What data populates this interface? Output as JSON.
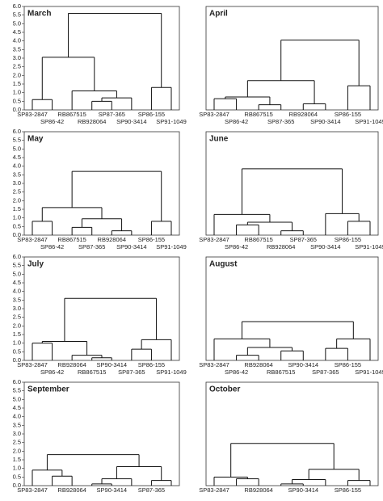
{
  "chart_data": [
    {
      "type": "dendrogram",
      "title": "March",
      "ylim": [
        0,
        6
      ],
      "yticks": [
        {
          "value": 0,
          "label": "0.0"
        },
        0.5,
        {
          "value": 1,
          "label": "1.0"
        },
        1.5,
        {
          "value": 2,
          "label": "2.0"
        },
        2.5,
        {
          "value": 3,
          "label": "3.0"
        },
        3.5,
        {
          "value": 4,
          "label": "4.0"
        },
        4.5,
        {
          "value": 5,
          "label": "5.0"
        },
        5.5,
        {
          "value": 6,
          "label": "6.0"
        }
      ],
      "tree": {
        "height": 5.6,
        "children": [
          {
            "height": 3.05,
            "children": [
              {
                "height": 0.6,
                "children": [
                  "SP83-2847",
                  "SP86-42"
                ]
              },
              {
                "height": 1.1,
                "children": [
                  "RB867515",
                  {
                    "height": 0.7,
                    "children": [
                      {
                        "height": 0.5,
                        "children": [
                          "RB928064",
                          "SP87-365"
                        ]
                      },
                      "SP90-3414"
                    ]
                  }
                ]
              }
            ]
          },
          {
            "height": 1.3,
            "children": [
              "SP86-155",
              "SP91-1049"
            ]
          }
        ]
      }
    },
    {
      "type": "dendrogram",
      "title": "April",
      "ylim": [
        0,
        6
      ],
      "tree": {
        "height": 4.05,
        "children": [
          {
            "height": 1.7,
            "children": [
              {
                "height": 0.75,
                "children": [
                  {
                    "height": 0.65,
                    "children": [
                      "SP83-2847",
                      "SP86-42"
                    ]
                  },
                  {
                    "height": 0.3,
                    "children": [
                      "RB867515",
                      "SP87-365"
                    ]
                  }
                ]
              },
              {
                "height": 0.35,
                "children": [
                  "RB928064",
                  "SP90-3414"
                ]
              }
            ]
          },
          {
            "height": 1.4,
            "children": [
              "SP86-155",
              "SP91-1049"
            ]
          }
        ]
      }
    },
    {
      "type": "dendrogram",
      "title": "May",
      "ylim": [
        0,
        6
      ],
      "yticks": [
        {
          "value": 0,
          "label": "0.0"
        },
        0.5,
        {
          "value": 1,
          "label": "1.0"
        },
        1.5,
        {
          "value": 2,
          "label": "2.0"
        },
        2.5,
        {
          "value": 3,
          "label": "3.0"
        },
        3.5,
        {
          "value": 4,
          "label": "4.0"
        },
        4.5,
        {
          "value": 5,
          "label": "5.0"
        },
        5.5,
        {
          "value": 6,
          "label": "6.0"
        }
      ],
      "tree": {
        "height": 3.7,
        "children": [
          {
            "height": 1.6,
            "children": [
              {
                "height": 0.8,
                "children": [
                  "SP83-2847",
                  "SP86-42"
                ]
              },
              {
                "height": 0.95,
                "children": [
                  {
                    "height": 0.45,
                    "children": [
                      "RB867515",
                      "SP87-365"
                    ]
                  },
                  {
                    "height": 0.25,
                    "children": [
                      "RB928064",
                      "SP90-3414"
                    ]
                  }
                ]
              }
            ]
          },
          {
            "height": 0.8,
            "children": [
              "SP86-155",
              "SP91-1049"
            ]
          }
        ]
      }
    },
    {
      "type": "dendrogram",
      "title": "June",
      "ylim": [
        0,
        6
      ],
      "tree": {
        "height": 3.85,
        "children": [
          {
            "height": 1.2,
            "children": [
              "SP83-2847",
              {
                "height": 0.75,
                "children": [
                  {
                    "height": 0.6,
                    "children": [
                      "SP86-42",
                      "RB867515"
                    ]
                  },
                  {
                    "height": 0.25,
                    "children": [
                      "RB928064",
                      "SP87-365"
                    ]
                  }
                ]
              }
            ]
          },
          {
            "height": 1.25,
            "children": [
              "SP90-3414",
              {
                "height": 0.8,
                "children": [
                  "SP86-155",
                  "SP91-1049"
                ]
              }
            ]
          }
        ]
      }
    },
    {
      "type": "dendrogram",
      "title": "July",
      "ylim": [
        0,
        6
      ],
      "yticks": [
        {
          "value": 0,
          "label": "0.0"
        },
        0.5,
        {
          "value": 1,
          "label": "1.0"
        },
        1.5,
        {
          "value": 2,
          "label": "2.0"
        },
        2.5,
        {
          "value": 3,
          "label": "3.0"
        },
        3.5,
        {
          "value": 4,
          "label": "4.0"
        },
        4.5,
        {
          "value": 5,
          "label": "5.0"
        },
        5.5,
        {
          "value": 6,
          "label": "6.0"
        }
      ],
      "tree": {
        "height": 3.6,
        "children": [
          {
            "height": 1.1,
            "children": [
              {
                "height": 1.0,
                "children": [
                  "SP83-2847",
                  "SP86-42"
                ]
              },
              {
                "height": 0.3,
                "children": [
                  "RB928064",
                  {
                    "height": 0.15,
                    "children": [
                      "RB867515",
                      "SP90-3414"
                    ]
                  }
                ]
              }
            ]
          },
          {
            "height": 1.2,
            "children": [
              {
                "height": 0.65,
                "children": [
                  "SP87-365",
                  "SP86-155"
                ]
              },
              "SP91-1049"
            ]
          }
        ]
      }
    },
    {
      "type": "dendrogram",
      "title": "August",
      "ylim": [
        0,
        6
      ],
      "tree": {
        "height": 2.25,
        "children": [
          {
            "height": 1.25,
            "children": [
              "SP83-2847",
              {
                "height": 0.75,
                "children": [
                  {
                    "height": 0.3,
                    "children": [
                      "SP86-42",
                      "RB928064"
                    ]
                  },
                  {
                    "height": 0.55,
                    "children": [
                      "RB867515",
                      "SP90-3414"
                    ]
                  }
                ]
              }
            ]
          },
          {
            "height": 1.25,
            "children": [
              {
                "height": 0.7,
                "children": [
                  "SP87-365",
                  "SP86-155"
                ]
              },
              "SP91-1049"
            ]
          }
        ]
      }
    },
    {
      "type": "dendrogram",
      "title": "September",
      "ylim": [
        0,
        6
      ],
      "yticks": [
        {
          "value": 0,
          "label": "0.0"
        },
        0.5,
        {
          "value": 1,
          "label": "1.0"
        },
        1.5,
        {
          "value": 2,
          "label": "2.0"
        },
        2.5,
        {
          "value": 3,
          "label": "3.0"
        },
        3.5,
        {
          "value": 4,
          "label": "4.0"
        },
        4.5,
        {
          "value": 5,
          "label": "5.0"
        },
        5.5,
        {
          "value": 6,
          "label": "6.0"
        }
      ],
      "tree": {
        "height": 1.8,
        "children": [
          {
            "height": 0.9,
            "children": [
              "SP83-2847",
              {
                "height": 0.55,
                "children": [
                  null,
                  "RB928064"
                ]
              }
            ]
          },
          {
            "height": 1.1,
            "children": [
              {
                "height": 0.4,
                "children": [
                  {
                    "height": 0.1,
                    "children": [
                      null,
                      "SP90-3414"
                    ]
                  },
                  null
                ]
              },
              {
                "height": 0.3,
                "children": [
                  "SP87-365",
                  null
                ]
              }
            ]
          }
        ]
      }
    },
    {
      "type": "dendrogram",
      "title": "October",
      "ylim": [
        0,
        6
      ],
      "tree": {
        "height": 2.45,
        "children": [
          {
            "height": 0.5,
            "children": [
              "SP83-2847",
              {
                "height": 0.4,
                "children": [
                  null,
                  "RB928064"
                ]
              }
            ]
          },
          {
            "height": 0.95,
            "children": [
              {
                "height": 0.35,
                "children": [
                  {
                    "height": 0.1,
                    "children": [
                      null,
                      "SP90-3414"
                    ]
                  },
                  null
                ]
              },
              {
                "height": 0.3,
                "children": [
                  "SP86-155",
                  null
                ]
              }
            ]
          }
        ]
      }
    }
  ]
}
